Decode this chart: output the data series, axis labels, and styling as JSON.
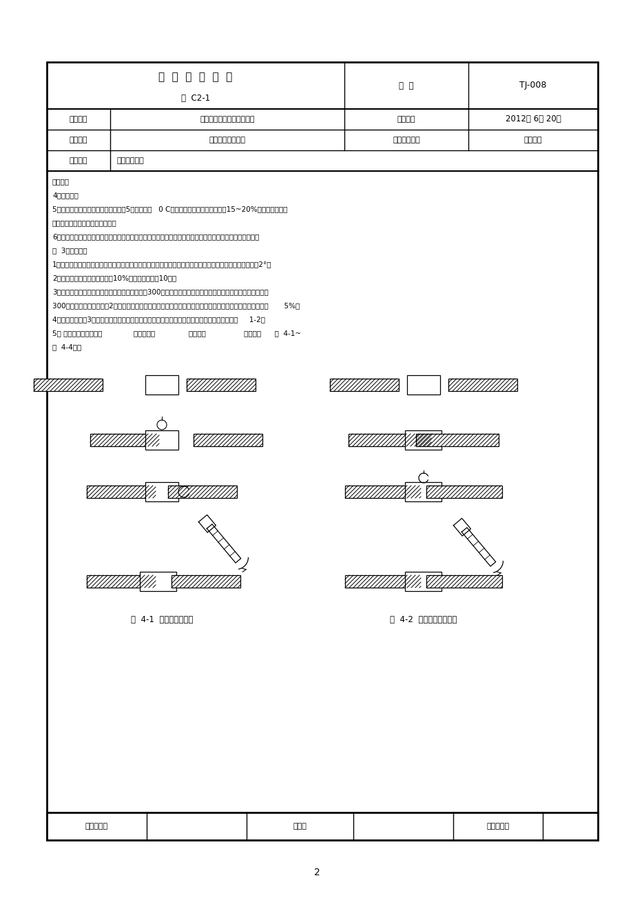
{
  "page_number": "2",
  "title_main": "技  术  交  底  记  录",
  "title_sub": "第  C2-1",
  "code_label": "编  号",
  "code_value": "TJ-008",
  "row1_col1": "工程名称",
  "row1_col2": "钉筋套筒挤压连接技术交底",
  "row1_col3": "交底日期",
  "row1_col4": "2012年 6月 20日",
  "row2_col1": "施工单位",
  "row2_col2": "建工建设有限公司",
  "row2_col3": "分部工程名称",
  "row2_col4": "结构工程",
  "row3_col1": "交底项目",
  "row3_col2": "钉筋套筒连接",
  "body_line1": "交底内容",
  "body_line2": "4、接头检验",
  "body_line3": "5、冬季施工：当室外日平均气温连续5天稳定低于   0 C时进入冬季施工，气温低于－15~20%时应停止施工，",
  "body_line4": "否则要采取保温措施后方可施工。",
  "body_line5": "6、安全文明施工：操作人员必须正确佩戴和使用劳动防护用品，操作中防止高空坠物及设备伤人事故发生。",
  "body_line6": "三  3、质量标准",
  "body_line7": "1、钉筋套筒挤压连接接头应进行外观检查，其质量应符合以下规定：接头钉筋与套筒轴线的偏差角不得大于2°；",
  "body_line8": "2、接头外观检查时，每批抽取10%的接头且不少于10个。",
  "body_line9": "3、钉筋套筒挤压连接接头力学性能检验时，应以300个同鑉筋级别、同直径、同套筒型号的接头为一批，不足",
  "body_line10": "300个按一批计算；若使用2种及以上套筒型号，则每种各取一组试件；抗拉强度不低于鑉筋抗拉强度标准値的       5%时",
  "body_line11": "4、每批随机抽取3个接头进行抗拉强度试验，取最大値，若不合格，再取双倍试件，仍不合格按     1-2处",
  "body_line12": "5） 套筒挤压连接工艺：              挤压前准备               压接操作                 压接检验      图  4-1~",
  "body_line13": "图  4-4所示",
  "fig41_caption": "图  4-1  直贡纹连接示意",
  "fig42_caption": "图  4-2  套筒挤压连接示意",
  "footer_col1": "技术负责人",
  "footer_col2": "交底人",
  "footer_col3": "被交底人员",
  "bg_color": "#ffffff",
  "border_color": "#000000"
}
